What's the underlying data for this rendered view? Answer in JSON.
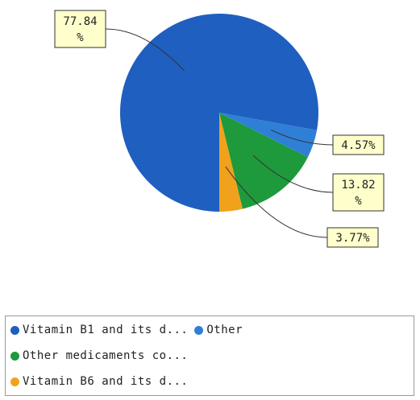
{
  "chart_data": {
    "type": "pie",
    "slices": [
      {
        "label": "Vitamin B1 and its d...",
        "value": 77.84,
        "color": "#1f5fbf",
        "label_text": [
          "77.84",
          "%"
        ]
      },
      {
        "label": "Other",
        "value": 4.57,
        "color": "#2f7fd6",
        "label_text": [
          "4.57%"
        ]
      },
      {
        "label": "Other medicaments co...",
        "value": 13.82,
        "color": "#1e9a3c",
        "label_text": [
          "13.82",
          "%"
        ]
      },
      {
        "label": "Vitamin B6 and its d...",
        "value": 3.77,
        "color": "#f0a21c",
        "label_text": [
          "3.77%"
        ]
      }
    ]
  },
  "legend": {
    "rows": [
      [
        {
          "label": "Vitamin B1 and its d...",
          "color": "#1f5fbf"
        },
        {
          "label": "Other",
          "color": "#2f7fd6"
        }
      ],
      [
        {
          "label": "Other medicaments co...",
          "color": "#1e9a3c"
        }
      ],
      [
        {
          "label": "Vitamin B6 and its d...",
          "color": "#f0a21c"
        }
      ]
    ]
  }
}
